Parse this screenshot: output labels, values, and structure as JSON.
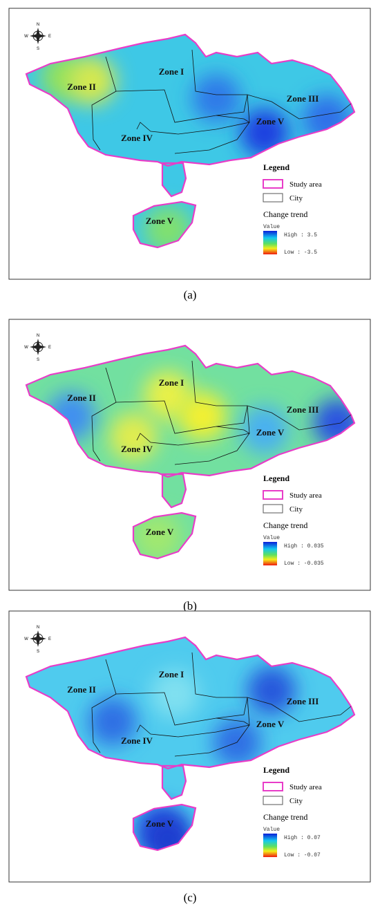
{
  "panels": [
    {
      "caption": "(a)",
      "compass": {
        "north": "N",
        "south": "S",
        "west": "W",
        "east": "E"
      },
      "zones": [
        "Zone I",
        "Zone II",
        "Zone III",
        "Zone IV",
        "Zone V",
        "Zone V"
      ],
      "legend": {
        "title": "Legend",
        "items": [
          "Study area",
          "City"
        ],
        "trend_title": "Change trend",
        "ramp_title": "Value",
        "high": "High : 3.5",
        "low": "Low : -3.5"
      }
    },
    {
      "caption": "(b)",
      "compass": {
        "north": "N",
        "south": "S",
        "west": "W",
        "east": "E"
      },
      "zones": [
        "Zone I",
        "Zone II",
        "Zone III",
        "Zone IV",
        "Zone V",
        "Zone V"
      ],
      "legend": {
        "title": "Legend",
        "items": [
          "Study area",
          "City"
        ],
        "trend_title": "Change trend",
        "ramp_title": "Value",
        "high": "High : 0.035",
        "low": "Low : -0.035"
      }
    },
    {
      "caption": "(c)",
      "compass": {
        "north": "N",
        "south": "S",
        "west": "W",
        "east": "E"
      },
      "zones": [
        "Zone I",
        "Zone II",
        "Zone III",
        "Zone IV",
        "Zone V",
        "Zone V"
      ],
      "legend": {
        "title": "Legend",
        "items": [
          "Study area",
          "City"
        ],
        "trend_title": "Change trend",
        "ramp_title": "Value",
        "high": "High : 0.07",
        "low": "Low : -0.07"
      }
    }
  ]
}
